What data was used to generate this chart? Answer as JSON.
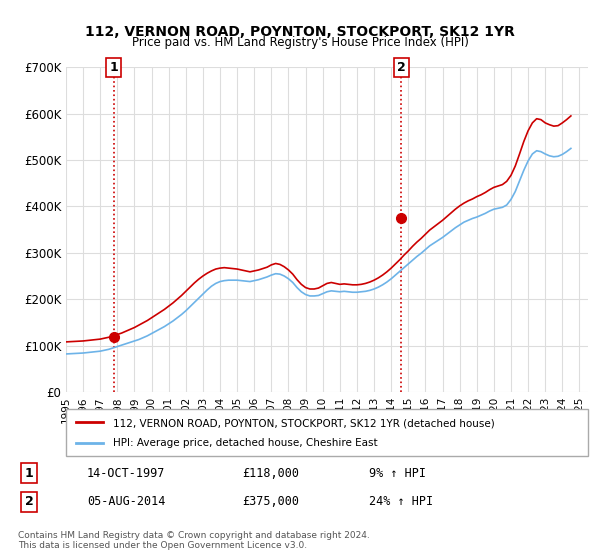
{
  "title": "112, VERNON ROAD, POYNTON, STOCKPORT, SK12 1YR",
  "subtitle": "Price paid vs. HM Land Registry's House Price Index (HPI)",
  "hpi_color": "#6db3e8",
  "price_color": "#cc0000",
  "marker_color": "#cc0000",
  "vline_color": "#cc0000",
  "grid_color": "#dddddd",
  "bg_color": "#ffffff",
  "legend_label_price": "112, VERNON ROAD, POYNTON, STOCKPORT, SK12 1YR (detached house)",
  "legend_label_hpi": "HPI: Average price, detached house, Cheshire East",
  "sale1_label": "1",
  "sale1_date_str": "14-OCT-1997",
  "sale1_price_str": "£118,000",
  "sale1_pct_str": "9% ↑ HPI",
  "sale2_label": "2",
  "sale2_date_str": "05-AUG-2014",
  "sale2_price_str": "£375,000",
  "sale2_pct_str": "24% ↑ HPI",
  "footer": "Contains HM Land Registry data © Crown copyright and database right 2024.\nThis data is licensed under the Open Government Licence v3.0.",
  "sale1_year": 1997.79,
  "sale1_price": 118000,
  "sale2_year": 2014.58,
  "sale2_price": 375000,
  "ylim": [
    0,
    700000
  ],
  "xlim": [
    1995.0,
    2025.5
  ],
  "yticks": [
    0,
    100000,
    200000,
    300000,
    400000,
    500000,
    600000,
    700000
  ],
  "ytick_labels": [
    "£0",
    "£100K",
    "£200K",
    "£300K",
    "£400K",
    "£500K",
    "£600K",
    "£700K"
  ],
  "xtick_years": [
    1995,
    1996,
    1997,
    1998,
    1999,
    2000,
    2001,
    2002,
    2003,
    2004,
    2005,
    2006,
    2007,
    2008,
    2009,
    2010,
    2011,
    2012,
    2013,
    2014,
    2015,
    2016,
    2017,
    2018,
    2019,
    2020,
    2021,
    2022,
    2023,
    2024,
    2025
  ],
  "hpi_x": [
    1995.0,
    1995.25,
    1995.5,
    1995.75,
    1996.0,
    1996.25,
    1996.5,
    1996.75,
    1997.0,
    1997.25,
    1997.5,
    1997.75,
    1998.0,
    1998.25,
    1998.5,
    1998.75,
    1999.0,
    1999.25,
    1999.5,
    1999.75,
    2000.0,
    2000.25,
    2000.5,
    2000.75,
    2001.0,
    2001.25,
    2001.5,
    2001.75,
    2002.0,
    2002.25,
    2002.5,
    2002.75,
    2003.0,
    2003.25,
    2003.5,
    2003.75,
    2004.0,
    2004.25,
    2004.5,
    2004.75,
    2005.0,
    2005.25,
    2005.5,
    2005.75,
    2006.0,
    2006.25,
    2006.5,
    2006.75,
    2007.0,
    2007.25,
    2007.5,
    2007.75,
    2008.0,
    2008.25,
    2008.5,
    2008.75,
    2009.0,
    2009.25,
    2009.5,
    2009.75,
    2010.0,
    2010.25,
    2010.5,
    2010.75,
    2011.0,
    2011.25,
    2011.5,
    2011.75,
    2012.0,
    2012.25,
    2012.5,
    2012.75,
    2013.0,
    2013.25,
    2013.5,
    2013.75,
    2014.0,
    2014.25,
    2014.5,
    2014.75,
    2015.0,
    2015.25,
    2015.5,
    2015.75,
    2016.0,
    2016.25,
    2016.5,
    2016.75,
    2017.0,
    2017.25,
    2017.5,
    2017.75,
    2018.0,
    2018.25,
    2018.5,
    2018.75,
    2019.0,
    2019.25,
    2019.5,
    2019.75,
    2020.0,
    2020.25,
    2020.5,
    2020.75,
    2021.0,
    2021.25,
    2021.5,
    2021.75,
    2022.0,
    2022.25,
    2022.5,
    2022.75,
    2023.0,
    2023.25,
    2023.5,
    2023.75,
    2024.0,
    2024.25,
    2024.5
  ],
  "hpi_y": [
    82000,
    82500,
    83000,
    83500,
    84000,
    85000,
    86000,
    87000,
    88000,
    90000,
    92000,
    95000,
    98000,
    101000,
    104000,
    107000,
    110000,
    113000,
    117000,
    121000,
    126000,
    131000,
    136000,
    141000,
    147000,
    153000,
    160000,
    167000,
    175000,
    184000,
    193000,
    202000,
    211000,
    220000,
    228000,
    234000,
    238000,
    240000,
    241000,
    241000,
    241000,
    240000,
    239000,
    238000,
    240000,
    242000,
    245000,
    248000,
    252000,
    255000,
    254000,
    250000,
    244000,
    236000,
    225000,
    216000,
    210000,
    207000,
    207000,
    208000,
    212000,
    216000,
    218000,
    217000,
    216000,
    217000,
    216000,
    215000,
    215000,
    216000,
    217000,
    219000,
    222000,
    226000,
    231000,
    237000,
    244000,
    252000,
    260000,
    268000,
    276000,
    284000,
    292000,
    299000,
    307000,
    315000,
    321000,
    327000,
    333000,
    340000,
    347000,
    354000,
    360000,
    366000,
    370000,
    374000,
    377000,
    381000,
    385000,
    390000,
    394000,
    396000,
    398000,
    403000,
    415000,
    432000,
    455000,
    478000,
    498000,
    513000,
    520000,
    518000,
    513000,
    509000,
    507000,
    508000,
    512000,
    518000,
    525000
  ],
  "price_x": [
    1995.0,
    1995.25,
    1995.5,
    1995.75,
    1996.0,
    1996.25,
    1996.5,
    1996.75,
    1997.0,
    1997.25,
    1997.5,
    1997.75,
    1998.0,
    1998.25,
    1998.5,
    1998.75,
    1999.0,
    1999.25,
    1999.5,
    1999.75,
    2000.0,
    2000.25,
    2000.5,
    2000.75,
    2001.0,
    2001.25,
    2001.5,
    2001.75,
    2002.0,
    2002.25,
    2002.5,
    2002.75,
    2003.0,
    2003.25,
    2003.5,
    2003.75,
    2004.0,
    2004.25,
    2004.5,
    2004.75,
    2005.0,
    2005.25,
    2005.5,
    2005.75,
    2006.0,
    2006.25,
    2006.5,
    2006.75,
    2007.0,
    2007.25,
    2007.5,
    2007.75,
    2008.0,
    2008.25,
    2008.5,
    2008.75,
    2009.0,
    2009.25,
    2009.5,
    2009.75,
    2010.0,
    2010.25,
    2010.5,
    2010.75,
    2011.0,
    2011.25,
    2011.5,
    2011.75,
    2012.0,
    2012.25,
    2012.5,
    2012.75,
    2013.0,
    2013.25,
    2013.5,
    2013.75,
    2014.0,
    2014.25,
    2014.5,
    2014.75,
    2015.0,
    2015.25,
    2015.5,
    2015.75,
    2016.0,
    2016.25,
    2016.5,
    2016.75,
    2017.0,
    2017.25,
    2017.5,
    2017.75,
    2018.0,
    2018.25,
    2018.5,
    2018.75,
    2019.0,
    2019.25,
    2019.5,
    2019.75,
    2020.0,
    2020.25,
    2020.5,
    2020.75,
    2021.0,
    2021.25,
    2021.5,
    2021.75,
    2022.0,
    2022.25,
    2022.5,
    2022.75,
    2023.0,
    2023.25,
    2023.5,
    2023.75,
    2024.0,
    2024.25,
    2024.5
  ],
  "price_y": [
    108000,
    108500,
    109000,
    109500,
    110000,
    111000,
    112000,
    113000,
    114000,
    116000,
    118000,
    121000,
    124000,
    127000,
    131000,
    135000,
    139000,
    144000,
    149000,
    154000,
    160000,
    166000,
    172000,
    178000,
    185000,
    192000,
    200000,
    208000,
    217000,
    226000,
    235000,
    243000,
    250000,
    256000,
    261000,
    265000,
    267000,
    268000,
    267000,
    266000,
    265000,
    263000,
    261000,
    259000,
    261000,
    263000,
    266000,
    269000,
    274000,
    277000,
    275000,
    270000,
    263000,
    254000,
    242000,
    232000,
    225000,
    222000,
    222000,
    224000,
    229000,
    234000,
    236000,
    234000,
    232000,
    233000,
    232000,
    231000,
    231000,
    232000,
    234000,
    237000,
    241000,
    246000,
    252000,
    259000,
    267000,
    276000,
    285000,
    295000,
    304000,
    314000,
    323000,
    331000,
    340000,
    349000,
    356000,
    363000,
    370000,
    378000,
    386000,
    394000,
    401000,
    407000,
    412000,
    416000,
    421000,
    425000,
    430000,
    436000,
    441000,
    444000,
    447000,
    454000,
    467000,
    487000,
    513000,
    540000,
    563000,
    580000,
    589000,
    587000,
    580000,
    576000,
    573000,
    574000,
    580000,
    587000,
    595000
  ]
}
